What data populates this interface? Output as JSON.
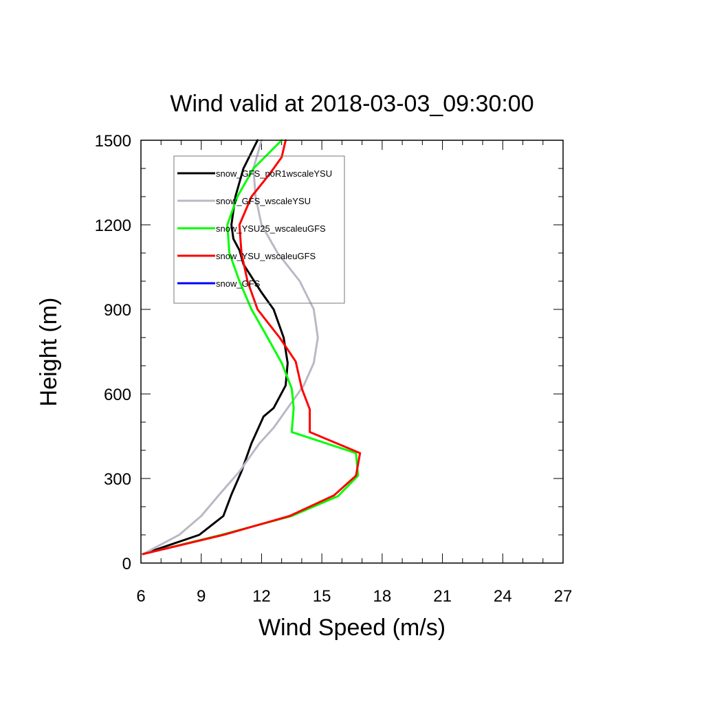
{
  "chart_data": {
    "type": "line",
    "title": "Wind valid at 2018-03-03_09:30:00",
    "xlabel": "Wind Speed (m/s)",
    "ylabel": "Height (m)",
    "xlim": [
      6,
      27
    ],
    "ylim": [
      0,
      1500
    ],
    "xticks": [
      6,
      9,
      12,
      15,
      18,
      21,
      24,
      27
    ],
    "yticks": [
      0,
      300,
      600,
      900,
      1200,
      1500
    ],
    "xtick_labels": [
      "6",
      "9",
      "12",
      "15",
      "18",
      "21",
      "24",
      "27"
    ],
    "ytick_labels": [
      "0",
      "300",
      "600",
      "900",
      "1200",
      "1500"
    ],
    "grid": false,
    "legend_placement": "top-left",
    "series": [
      {
        "name": "snow_GFS_noR1wscaleYSU",
        "color": "#000000",
        "points": [
          [
            6.1,
            32
          ],
          [
            8.9,
            100
          ],
          [
            10.1,
            167
          ],
          [
            10.5,
            243
          ],
          [
            11.0,
            325
          ],
          [
            11.5,
            425
          ],
          [
            12.1,
            520
          ],
          [
            12.6,
            550
          ],
          [
            13.2,
            630
          ],
          [
            13.3,
            710
          ],
          [
            13.1,
            800
          ],
          [
            12.6,
            900
          ],
          [
            12.0,
            960
          ],
          [
            11.1,
            1060
          ],
          [
            10.9,
            1110
          ],
          [
            10.6,
            1150
          ],
          [
            10.5,
            1200
          ],
          [
            10.7,
            1300
          ],
          [
            11.1,
            1400
          ],
          [
            11.8,
            1500
          ]
        ]
      },
      {
        "name": "snow_GFS_wscaleYSU",
        "color": "#b9b9c5",
        "points": [
          [
            6.1,
            32
          ],
          [
            7.9,
            100
          ],
          [
            9.0,
            167
          ],
          [
            9.9,
            243
          ],
          [
            10.9,
            325
          ],
          [
            11.9,
            425
          ],
          [
            12.6,
            480
          ],
          [
            13.3,
            550
          ],
          [
            14.1,
            630
          ],
          [
            14.6,
            710
          ],
          [
            14.8,
            800
          ],
          [
            14.6,
            900
          ],
          [
            13.9,
            1000
          ],
          [
            12.8,
            1100
          ],
          [
            12.0,
            1200
          ],
          [
            11.7,
            1300
          ],
          [
            11.6,
            1400
          ],
          [
            12.0,
            1500
          ]
        ]
      },
      {
        "name": "snow_YSU25_wscaleuGFS",
        "color": "#00ff00",
        "points": [
          [
            6.1,
            32
          ],
          [
            10.0,
            100
          ],
          [
            13.5,
            167
          ],
          [
            15.8,
            237
          ],
          [
            16.8,
            310
          ],
          [
            16.7,
            390
          ],
          [
            13.5,
            465
          ],
          [
            13.6,
            550
          ],
          [
            13.5,
            620
          ],
          [
            13.0,
            710
          ],
          [
            12.3,
            800
          ],
          [
            11.5,
            900
          ],
          [
            10.9,
            1000
          ],
          [
            10.4,
            1100
          ],
          [
            10.3,
            1200
          ],
          [
            10.8,
            1300
          ],
          [
            11.6,
            1400
          ],
          [
            13.0,
            1500
          ]
        ]
      },
      {
        "name": "snow_YSU_wscaleuGFS",
        "color": "#ff0000",
        "points": [
          [
            6.1,
            32
          ],
          [
            10.1,
            100
          ],
          [
            13.4,
            167
          ],
          [
            15.6,
            240
          ],
          [
            16.7,
            310
          ],
          [
            16.9,
            390
          ],
          [
            14.4,
            465
          ],
          [
            14.4,
            545
          ],
          [
            14.0,
            620
          ],
          [
            13.7,
            715
          ],
          [
            12.9,
            800
          ],
          [
            11.8,
            900
          ],
          [
            11.3,
            1000
          ],
          [
            11.0,
            1100
          ],
          [
            10.9,
            1200
          ],
          [
            11.5,
            1300
          ],
          [
            12.4,
            1380
          ],
          [
            13.0,
            1440
          ],
          [
            13.2,
            1500
          ]
        ]
      },
      {
        "name": "snow_GFS",
        "color": "#0000ff",
        "points": []
      }
    ]
  }
}
